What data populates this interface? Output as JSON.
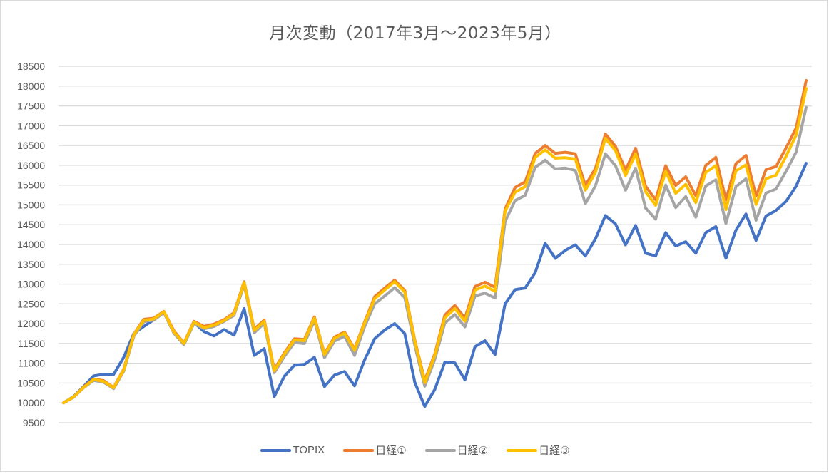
{
  "chart_data": {
    "type": "line",
    "title": "月次変動（2017年3月～2023年5月）",
    "xlabel": "",
    "ylabel": "",
    "ylim": [
      9500,
      18500
    ],
    "yticks": [
      18500,
      18000,
      17500,
      17000,
      16500,
      16000,
      15500,
      15000,
      14500,
      14000,
      13500,
      13000,
      12500,
      12000,
      11500,
      11000,
      10500,
      10000,
      9500
    ],
    "grid": true,
    "legend_position": "bottom",
    "x_range": "2017-03 to 2023-05 (monthly, 75 points, no x tick labels shown)",
    "x": [
      0,
      1,
      2,
      3,
      4,
      5,
      6,
      7,
      8,
      9,
      10,
      11,
      12,
      13,
      14,
      15,
      16,
      17,
      18,
      19,
      20,
      21,
      22,
      23,
      24,
      25,
      26,
      27,
      28,
      29,
      30,
      31,
      32,
      33,
      34,
      35,
      36,
      37,
      38,
      39,
      40,
      41,
      42,
      43,
      44,
      45,
      46,
      47,
      48,
      49,
      50,
      51,
      52,
      53,
      54,
      55,
      56,
      57,
      58,
      59,
      60,
      61,
      62,
      63,
      64,
      65,
      66,
      67,
      68,
      69,
      70,
      71,
      72,
      73,
      74
    ],
    "series": [
      {
        "name": "TOPIX",
        "color": "#4472C4",
        "values": [
          10000,
          10160,
          10410,
          10680,
          10720,
          10720,
          11150,
          11750,
          11930,
          12100,
          12290,
          11800,
          11510,
          12030,
          11800,
          11690,
          11850,
          11710,
          12380,
          11200,
          11370,
          10160,
          10670,
          10950,
          10970,
          11150,
          10410,
          10700,
          10790,
          10430,
          11080,
          11620,
          11840,
          12000,
          11750,
          10520,
          9910,
          10340,
          11030,
          11010,
          10580,
          11420,
          11570,
          11220,
          12500,
          12860,
          12900,
          13290,
          14030,
          13650,
          13850,
          13990,
          13710,
          14140,
          14730,
          14520,
          13990,
          14480,
          13780,
          13710,
          14300,
          13960,
          14070,
          13780,
          14300,
          14450,
          13650,
          14360,
          14770,
          14100,
          14720,
          14860,
          15090,
          15470,
          16050
        ]
      },
      {
        "name": "日経①",
        "color": "#ED7D31",
        "values": [
          10000,
          10150,
          10400,
          10600,
          10560,
          10390,
          10850,
          11730,
          12110,
          12140,
          12310,
          11820,
          11510,
          12060,
          11930,
          11990,
          12100,
          12280,
          13060,
          11860,
          12090,
          10840,
          11260,
          11620,
          11600,
          12170,
          11240,
          11660,
          11790,
          11360,
          12040,
          12680,
          12900,
          13100,
          12840,
          11590,
          10560,
          11240,
          12220,
          12460,
          12140,
          12940,
          13050,
          12920,
          14900,
          15440,
          15580,
          16300,
          16500,
          16300,
          16330,
          16290,
          15490,
          15920,
          16790,
          16480,
          15880,
          16430,
          15470,
          15130,
          15990,
          15490,
          15710,
          15230,
          16000,
          16200,
          15120,
          16040,
          16250,
          15220,
          15890,
          15970,
          16440,
          16940,
          18140
        ]
      },
      {
        "name": "日経②",
        "color": "#A5A5A5",
        "values": [
          10000,
          10140,
          10380,
          10570,
          10520,
          10360,
          10800,
          11680,
          12050,
          12090,
          12280,
          11760,
          11470,
          12010,
          11870,
          11930,
          12060,
          12210,
          12990,
          11770,
          12010,
          10760,
          11170,
          11520,
          11500,
          12080,
          11140,
          11560,
          11680,
          11200,
          11920,
          12500,
          12700,
          12910,
          12660,
          11460,
          10420,
          11100,
          12020,
          12230,
          11920,
          12700,
          12770,
          12650,
          14580,
          15110,
          15240,
          15950,
          16130,
          15910,
          15930,
          15870,
          15030,
          15480,
          16290,
          15990,
          15370,
          15930,
          14920,
          14640,
          15500,
          14930,
          15210,
          14690,
          15480,
          15630,
          14530,
          15460,
          15660,
          14610,
          15300,
          15400,
          15850,
          16330,
          17460
        ]
      },
      {
        "name": "日経③",
        "color": "#FFC000",
        "values": [
          10000,
          10150,
          10390,
          10590,
          10540,
          10380,
          10830,
          11720,
          12080,
          12120,
          12300,
          11790,
          11500,
          12040,
          11900,
          11960,
          12080,
          12250,
          13040,
          11830,
          12060,
          10810,
          11230,
          11590,
          11570,
          12140,
          11220,
          11630,
          11760,
          11330,
          12010,
          12630,
          12850,
          13060,
          12800,
          11560,
          10510,
          11200,
          12150,
          12380,
          12060,
          12850,
          12950,
          12820,
          14840,
          15320,
          15460,
          16200,
          16390,
          16180,
          16190,
          16160,
          15370,
          15820,
          16680,
          16370,
          15740,
          16290,
          15330,
          14990,
          15850,
          15290,
          15520,
          15060,
          15820,
          15990,
          14880,
          15860,
          16010,
          15010,
          15660,
          15750,
          16230,
          16760,
          17940
        ]
      }
    ]
  },
  "legend": {
    "items": [
      {
        "label": "TOPIX",
        "color": "#4472C4"
      },
      {
        "label": "日経①",
        "color": "#ED7D31"
      },
      {
        "label": "日経②",
        "color": "#A5A5A5"
      },
      {
        "label": "日経③",
        "color": "#FFC000"
      }
    ]
  }
}
